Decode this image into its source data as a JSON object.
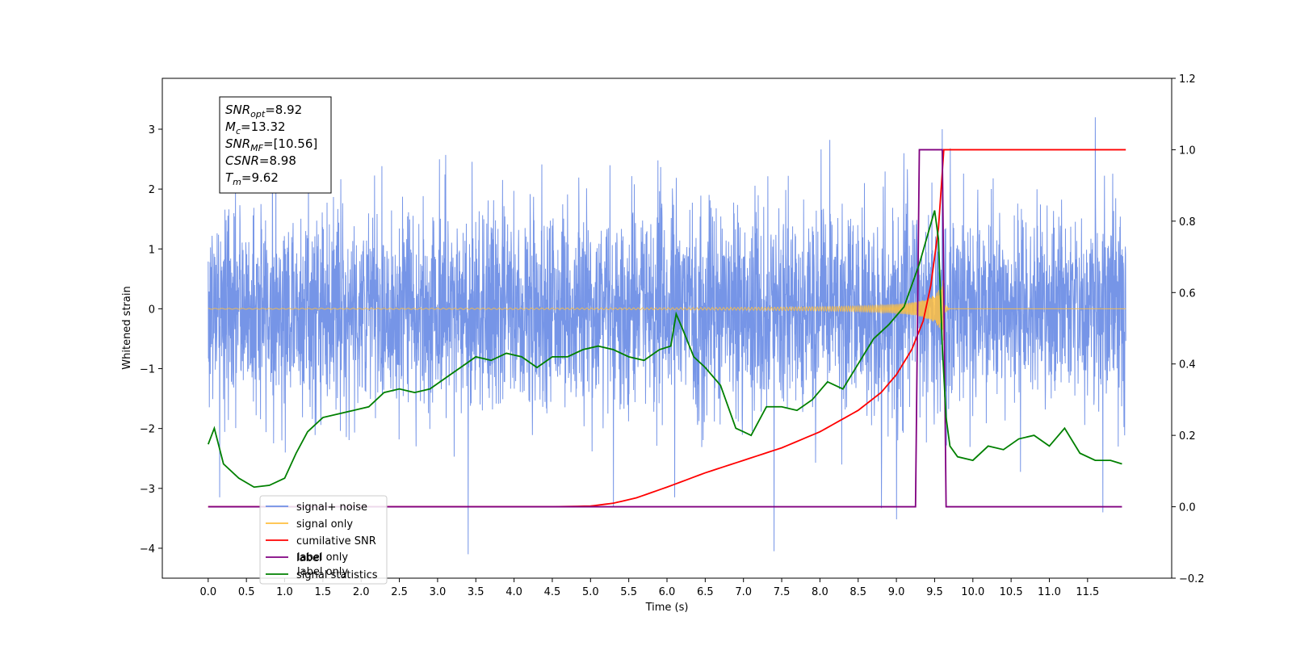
{
  "chart_data": {
    "type": "line",
    "xlabel": "Time (s)",
    "ylabel_left": "Whitened strain",
    "xlim": [
      -0.6,
      12.6
    ],
    "ylim_left": [
      -4.5,
      3.85
    ],
    "ylim_right": [
      -0.2,
      1.2
    ],
    "x_ticks": [
      "0.0",
      "0.5",
      "1.0",
      "1.5",
      "2.0",
      "2.5",
      "3.0",
      "3.5",
      "4.0",
      "4.5",
      "5.0",
      "5.5",
      "6.0",
      "6.5",
      "7.0",
      "7.5",
      "8.0",
      "8.5",
      "9.0",
      "9.5",
      "10.0",
      "10.5",
      "11.0",
      "11.5"
    ],
    "x_tick_values": [
      0,
      0.5,
      1,
      1.5,
      2,
      2.5,
      3,
      3.5,
      4,
      4.5,
      5,
      5.5,
      6,
      6.5,
      7,
      7.5,
      8,
      8.5,
      9,
      9.5,
      10,
      10.5,
      11,
      11.5
    ],
    "y_ticks_left": [
      3,
      2,
      1,
      0,
      -1,
      -2,
      -3,
      -4
    ],
    "y_ticks_left_labels": [
      "3",
      "2",
      "1",
      "0",
      "−1",
      "−2",
      "−3",
      "−4"
    ],
    "y_ticks_right": [
      1.2,
      1.0,
      0.8,
      0.6,
      0.4,
      0.2,
      0.0,
      -0.2
    ],
    "y_ticks_right_labels": [
      "1.2",
      "1.0",
      "0.8",
      "0.6",
      "0.4",
      "0.2",
      "0.0",
      "−0.2"
    ],
    "annotation": {
      "lines": [
        {
          "base": "SNR",
          "sub": "opt",
          "rest": "=8.92"
        },
        {
          "base": "M",
          "sub": "c",
          "rest": "=13.32"
        },
        {
          "base": "SNR",
          "sub": "MF",
          "rest": "=[10.56]"
        },
        {
          "base": "CSNR",
          "sub": "",
          "rest": "=8.98"
        },
        {
          "base": "T",
          "sub": "m",
          "rest": "=9.62"
        }
      ]
    },
    "legend": {
      "placement": "lower-left",
      "entries": [
        {
          "label": "signal+ noise",
          "color": "#6f8fe6"
        },
        {
          "label": "signal only",
          "color": "#ffbf40"
        },
        {
          "label": "cumilative SNR",
          "color": "#ff0000"
        },
        {
          "label": "label",
          "color": "#800080"
        },
        {
          "label": "signal statistics",
          "color": "#008000"
        }
      ],
      "hidden_text": [
        "label only",
        "label only"
      ]
    },
    "series": [
      {
        "name": "signal+ noise",
        "axis": "left",
        "color": "#6f8fe6",
        "x_range": [
          0,
          12.0
        ],
        "noise_sigma": 0.85,
        "notable_points": [
          {
            "x": 0.15,
            "y": -3.15
          },
          {
            "x": 3.4,
            "y": -4.1
          },
          {
            "x": 5.3,
            "y": -3.3
          },
          {
            "x": 7.4,
            "y": -4.05
          },
          {
            "x": 11.7,
            "y": -3.4
          },
          {
            "x": 11.6,
            "y": 3.2
          },
          {
            "x": 9.6,
            "y": 3.0
          },
          {
            "x": 6.1,
            "y": -3.15
          }
        ]
      },
      {
        "name": "signal only",
        "axis": "left",
        "color": "#ffbf40",
        "x_range": [
          0,
          12.0
        ],
        "chirp_end": 9.62,
        "peak_amplitude": 0.55
      },
      {
        "name": "cumilative SNR",
        "axis": "right",
        "color": "#ff0000",
        "x": [
          0,
          4.5,
          5.0,
          5.3,
          5.6,
          6.0,
          6.5,
          7.0,
          7.5,
          8.0,
          8.5,
          8.8,
          9.0,
          9.2,
          9.35,
          9.45,
          9.55,
          9.62,
          12.0
        ],
        "y": [
          0,
          0,
          0.002,
          0.01,
          0.025,
          0.055,
          0.095,
          0.13,
          0.165,
          0.21,
          0.27,
          0.32,
          0.37,
          0.44,
          0.52,
          0.62,
          0.78,
          1.0,
          1.0
        ]
      },
      {
        "name": "label",
        "axis": "right",
        "color": "#800080",
        "x": [
          0,
          9.25,
          9.3,
          9.6,
          9.65,
          11.95
        ],
        "y": [
          0,
          0,
          1.0,
          1.0,
          0,
          0
        ]
      },
      {
        "name": "signal statistics",
        "axis": "right",
        "color": "#008000",
        "x": [
          0,
          0.08,
          0.2,
          0.4,
          0.6,
          0.8,
          1.0,
          1.15,
          1.3,
          1.5,
          1.7,
          1.9,
          2.1,
          2.3,
          2.5,
          2.7,
          2.9,
          3.1,
          3.3,
          3.5,
          3.7,
          3.9,
          4.1,
          4.3,
          4.5,
          4.7,
          4.9,
          5.1,
          5.3,
          5.5,
          5.7,
          5.9,
          6.05,
          6.12,
          6.2,
          6.35,
          6.5,
          6.7,
          6.9,
          7.0,
          7.1,
          7.3,
          7.5,
          7.7,
          7.9,
          8.1,
          8.3,
          8.5,
          8.7,
          8.9,
          9.1,
          9.3,
          9.5,
          9.55,
          9.6,
          9.65,
          9.7,
          9.8,
          10.0,
          10.2,
          10.4,
          10.6,
          10.8,
          11.0,
          11.2,
          11.4,
          11.6,
          11.8,
          11.95
        ],
        "y": [
          0.175,
          0.22,
          0.12,
          0.08,
          0.055,
          0.06,
          0.08,
          0.15,
          0.21,
          0.25,
          0.26,
          0.27,
          0.28,
          0.32,
          0.33,
          0.32,
          0.33,
          0.36,
          0.39,
          0.42,
          0.41,
          0.43,
          0.42,
          0.39,
          0.42,
          0.42,
          0.44,
          0.45,
          0.44,
          0.42,
          0.41,
          0.44,
          0.45,
          0.54,
          0.5,
          0.42,
          0.39,
          0.34,
          0.22,
          0.21,
          0.2,
          0.28,
          0.28,
          0.27,
          0.3,
          0.35,
          0.33,
          0.4,
          0.47,
          0.51,
          0.56,
          0.68,
          0.83,
          0.75,
          0.45,
          0.25,
          0.17,
          0.14,
          0.13,
          0.17,
          0.16,
          0.19,
          0.2,
          0.17,
          0.22,
          0.15,
          0.13,
          0.13,
          0.12
        ]
      }
    ]
  }
}
